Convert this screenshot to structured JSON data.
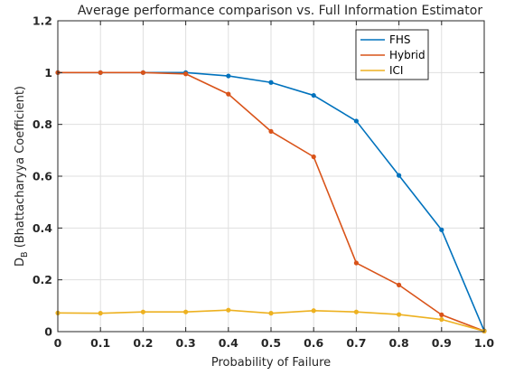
{
  "chart_data": {
    "type": "line",
    "title": "Average performance comparison vs. Full Information Estimator",
    "xlabel": "Probability of Failure",
    "ylabel": "D_B (Bhattacharyya Coefficient)",
    "ylabel_main": "D",
    "ylabel_sub": "B",
    "ylabel_rest": " (Bhattacharyya Coefficient)",
    "x": [
      0,
      0.1,
      0.2,
      0.3,
      0.4,
      0.5,
      0.6,
      0.7,
      0.8,
      0.9,
      1.0
    ],
    "xlim": [
      0,
      1
    ],
    "ylim": [
      0,
      1.2
    ],
    "x_ticks": [
      "0",
      "0.1",
      "0.2",
      "0.3",
      "0.4",
      "0.5",
      "0.6",
      "0.7",
      "0.8",
      "0.9",
      "1.0"
    ],
    "y_ticks": [
      "0",
      "0.2",
      "0.4",
      "0.6",
      "0.8",
      "1",
      "1.2"
    ],
    "grid": true,
    "legend_position": "top-right",
    "series": [
      {
        "name": "FHS",
        "color": "#0072BD",
        "values": [
          1.0,
          1.0,
          1.0,
          1.0,
          0.987,
          0.962,
          0.912,
          0.813,
          0.603,
          0.393,
          0.003
        ]
      },
      {
        "name": "Hybrid",
        "color": "#D95319",
        "values": [
          1.0,
          1.0,
          1.0,
          0.995,
          0.917,
          0.773,
          0.675,
          0.265,
          0.18,
          0.065,
          0.002
        ]
      },
      {
        "name": "ICI",
        "color": "#EDB120",
        "values": [
          0.072,
          0.071,
          0.076,
          0.076,
          0.083,
          0.071,
          0.081,
          0.076,
          0.066,
          0.047,
          0.002
        ]
      }
    ]
  }
}
